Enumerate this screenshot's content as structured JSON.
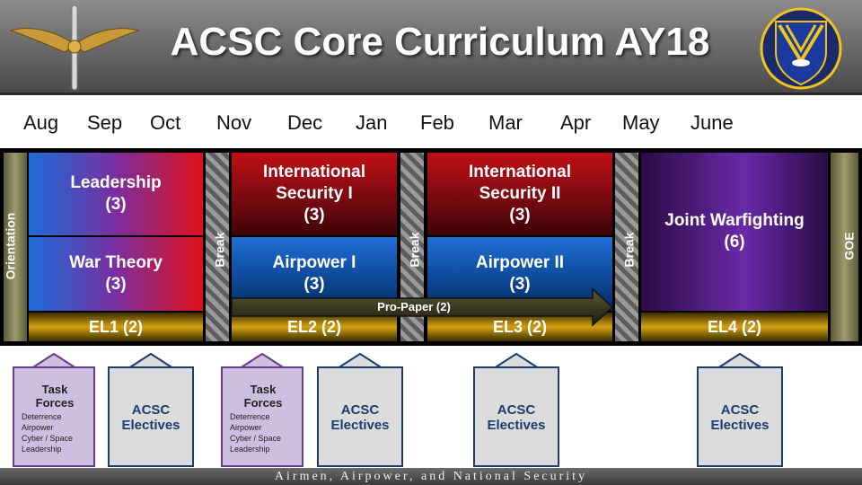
{
  "header": {
    "title": "ACSC Core Curriculum AY18",
    "wings_logo": "wings-propeller-icon",
    "seal_logo": "acsc-shield-seal-icon"
  },
  "months": [
    "Aug",
    "Sep",
    "Oct",
    "Nov",
    "Dec",
    "Jan",
    "Feb",
    "Mar",
    "Apr",
    "May",
    "June"
  ],
  "blocks": {
    "orientation": "Orientation",
    "leadership": {
      "name": "Leadership",
      "credits": "(3)"
    },
    "war_theory": {
      "name": "War Theory",
      "credits": "(3)"
    },
    "is1": {
      "name1": "International",
      "name2": "Security I",
      "credits": "(3)"
    },
    "ap1": {
      "name": "Airpower I",
      "credits": "(3)"
    },
    "is2": {
      "name1": "International",
      "name2": "Security II",
      "credits": "(3)"
    },
    "ap2": {
      "name": "Airpower II",
      "credits": "(3)"
    },
    "joint": {
      "name": "Joint Warfighting",
      "credits": "(6)"
    },
    "goe": "GOE",
    "break_label": "Break",
    "el1": "EL1 (2)",
    "el2": "EL2 (2)",
    "el3": "EL3 (2)",
    "el4": "EL4 (2)",
    "pro_paper": "Pro-Paper (2)"
  },
  "callouts": {
    "task_forces": {
      "title1": "Task",
      "title2": "Forces",
      "items": [
        "Deterrence",
        "Airpower",
        "Cyber / Space",
        "Leadership"
      ]
    },
    "electives": {
      "line1": "ACSC",
      "line2": "Electives"
    }
  },
  "footer": "Airmen, Airpower, and National Security",
  "colors": {
    "red": "#c20f16",
    "blue": "#1f6fd6",
    "purple": "#6a2aa8",
    "gold": "#d2a210",
    "taskforce_fill": "#cdbfe0",
    "elective_fill": "#dcdcdc",
    "navy_border": "#1f3c6e",
    "purple_border": "#6a3d8a"
  }
}
